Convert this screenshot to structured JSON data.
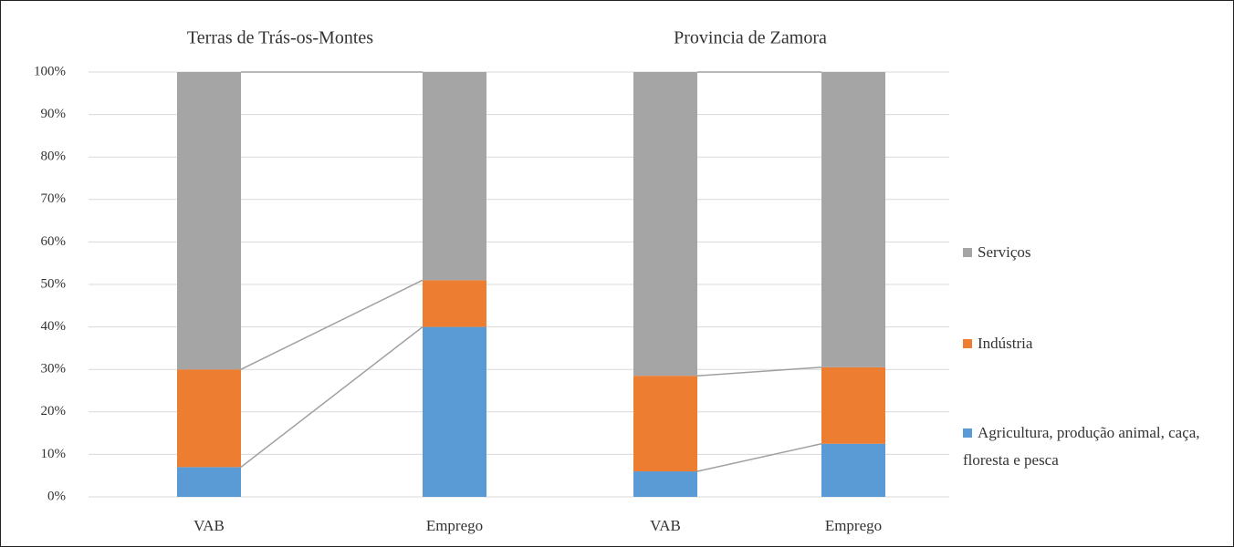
{
  "chart_data": {
    "type": "stacked_bar",
    "groups": [
      "Terras de Trás-os-Montes",
      "Provincia de Zamora"
    ],
    "categories": [
      "VAB",
      "Emprego",
      "VAB",
      "Emprego"
    ],
    "series": [
      {
        "name": "Agricultura, produção animal, caça, floresta e pesca",
        "color": "#5b9bd5",
        "values": [
          7,
          40,
          6,
          12.5
        ]
      },
      {
        "name": "Indústria",
        "color": "#ed7d31",
        "values": [
          23,
          11,
          22.5,
          18
        ]
      },
      {
        "name": "Serviços",
        "color": "#a5a5a5",
        "values": [
          70,
          49,
          71.5,
          69.5
        ]
      }
    ],
    "ylim": [
      0,
      100
    ],
    "yticks": [
      {
        "value": 0,
        "label": "0%"
      },
      {
        "value": 10,
        "label": "10%"
      },
      {
        "value": 20,
        "label": "20%"
      },
      {
        "value": 30,
        "label": "30%"
      },
      {
        "value": 40,
        "label": "40%"
      },
      {
        "value": 50,
        "label": "50%"
      },
      {
        "value": 60,
        "label": "60%"
      },
      {
        "value": 70,
        "label": "70%"
      },
      {
        "value": 80,
        "label": "80%"
      },
      {
        "value": 90,
        "label": "90%"
      },
      {
        "value": 100,
        "label": "100%"
      }
    ],
    "grid": true,
    "legend": "right"
  }
}
